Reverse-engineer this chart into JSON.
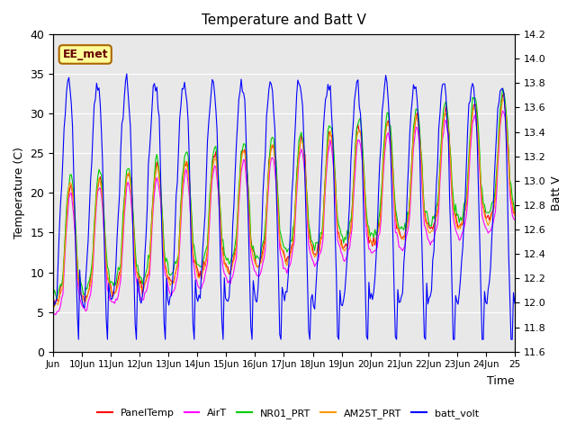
{
  "title": "Temperature and Batt V",
  "xlabel": "Time",
  "ylabel_left": "Temperature (C)",
  "ylabel_right": "Batt V",
  "ylim_left": [
    0,
    40
  ],
  "ylim_right": [
    11.6,
    14.2
  ],
  "xlim": [
    0,
    16
  ],
  "x_tick_positions": [
    0,
    1,
    2,
    3,
    4,
    5,
    6,
    7,
    8,
    9,
    10,
    11,
    12,
    13,
    14,
    15,
    16
  ],
  "x_tick_labels": [
    "Jun",
    "10Jun",
    "11Jun",
    "12Jun",
    "13Jun",
    "14Jun",
    "15Jun",
    "16Jun",
    "17Jun",
    "18Jun",
    "19Jun",
    "20Jun",
    "21Jun",
    "22Jun",
    "23Jun",
    "24Jun",
    "25"
  ],
  "annotation_text": "EE_met",
  "bg_color": "#e8e8e8",
  "line_colors": {
    "PanelTemp": "#ff0000",
    "AirT": "#ff00ff",
    "NR01_PRT": "#00cc00",
    "AM25T_PRT": "#ff9900",
    "batt_volt": "#0000ff"
  },
  "legend_labels": [
    "PanelTemp",
    "AirT",
    "NR01_PRT",
    "AM25T_PRT",
    "batt_volt"
  ],
  "yticks_left": [
    0,
    5,
    10,
    15,
    20,
    25,
    30,
    35,
    40
  ],
  "yticks_right": [
    11.6,
    11.8,
    12.0,
    12.2,
    12.4,
    12.6,
    12.8,
    13.0,
    13.2,
    13.4,
    13.6,
    13.8,
    14.0,
    14.2
  ]
}
